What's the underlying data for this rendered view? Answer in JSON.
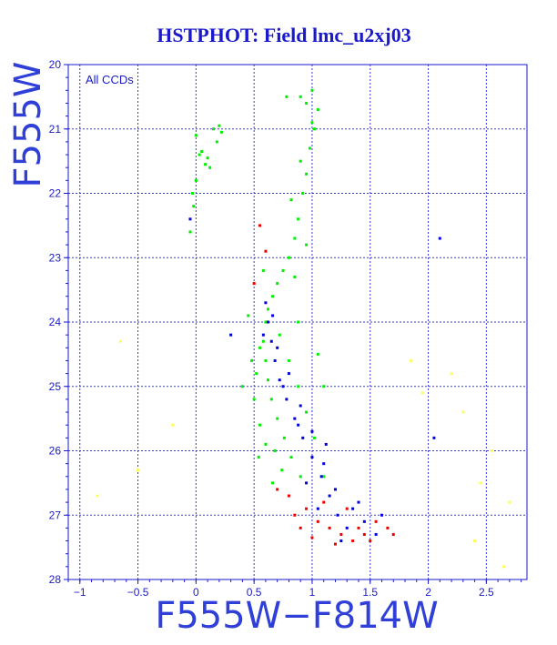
{
  "chart_data": {
    "type": "scatter",
    "title": "HSTPHOT: Field lmc_u2xj03",
    "xlabel": "F555W−F814W",
    "ylabel": "F555W",
    "annotation": "All CCDs",
    "xlim": [
      -1.1,
      2.85
    ],
    "ylim": [
      28,
      20
    ],
    "y_inverted": true,
    "x_ticks": [
      -1,
      -0.5,
      0,
      0.5,
      1,
      1.5,
      2,
      2.5
    ],
    "x_tick_labels": [
      "−1",
      "−0.5",
      "0",
      "0.5",
      "1",
      "1.5",
      "2",
      "2.5"
    ],
    "y_ticks": [
      20,
      21,
      22,
      23,
      24,
      25,
      26,
      27,
      28
    ],
    "y_tick_labels": [
      "20",
      "21",
      "22",
      "23",
      "24",
      "25",
      "26",
      "27",
      "28"
    ],
    "grid": true,
    "colors": {
      "title": "#1a1acc",
      "axis": "#1a1acc",
      "grid": "#3a3acc",
      "axis_label": "#2f3fd8"
    },
    "series": [
      {
        "color": "#00ee00",
        "points": [
          [
            0.0,
            21.1
          ],
          [
            0.05,
            21.35
          ],
          [
            0.1,
            21.45
          ],
          [
            0.15,
            21.0
          ],
          [
            0.2,
            20.95
          ],
          [
            0.0,
            21.8
          ],
          [
            -0.02,
            22.2
          ],
          [
            -0.05,
            22.6
          ],
          [
            0.08,
            21.55
          ],
          [
            0.12,
            21.6
          ],
          [
            0.03,
            21.4
          ],
          [
            0.18,
            21.2
          ],
          [
            -0.03,
            22.0
          ],
          [
            0.22,
            21.05
          ],
          [
            0.95,
            20.6
          ],
          [
            1.0,
            20.4
          ],
          [
            0.9,
            20.5
          ],
          [
            1.05,
            20.7
          ],
          [
            1.0,
            20.9
          ],
          [
            0.98,
            21.3
          ],
          [
            0.95,
            21.7
          ],
          [
            0.92,
            22.0
          ],
          [
            0.88,
            22.4
          ],
          [
            0.85,
            22.7
          ],
          [
            0.8,
            23.0
          ],
          [
            0.75,
            23.2
          ],
          [
            0.7,
            23.4
          ],
          [
            0.66,
            23.6
          ],
          [
            0.62,
            23.8
          ],
          [
            0.6,
            24.0
          ],
          [
            0.58,
            24.3
          ],
          [
            0.6,
            24.6
          ],
          [
            0.62,
            24.9
          ],
          [
            0.65,
            25.2
          ],
          [
            0.7,
            25.5
          ],
          [
            0.76,
            25.8
          ],
          [
            0.82,
            26.1
          ],
          [
            0.9,
            26.4
          ],
          [
            0.55,
            24.4
          ],
          [
            0.52,
            24.8
          ],
          [
            0.5,
            25.2
          ],
          [
            0.55,
            25.6
          ],
          [
            0.72,
            24.2
          ],
          [
            0.8,
            24.6
          ],
          [
            0.88,
            25.0
          ],
          [
            0.95,
            25.4
          ],
          [
            1.02,
            25.8
          ],
          [
            0.6,
            25.9
          ],
          [
            0.68,
            26.0
          ],
          [
            0.74,
            26.3
          ],
          [
            0.45,
            23.9
          ],
          [
            0.48,
            24.6
          ],
          [
            0.85,
            23.3
          ],
          [
            0.95,
            22.8
          ],
          [
            1.05,
            24.5
          ],
          [
            1.1,
            25.0
          ],
          [
            0.4,
            25.0
          ],
          [
            0.58,
            23.2
          ],
          [
            0.82,
            22.1
          ],
          [
            0.9,
            21.5
          ],
          [
            1.02,
            21.0
          ],
          [
            0.78,
            20.5
          ],
          [
            0.88,
            24.0
          ],
          [
            0.66,
            26.5
          ],
          [
            1.1,
            26.4
          ],
          [
            0.54,
            26.1
          ]
        ]
      },
      {
        "color": "#0000dd",
        "points": [
          [
            0.62,
            24.0
          ],
          [
            0.65,
            24.3
          ],
          [
            0.68,
            24.6
          ],
          [
            0.72,
            24.9
          ],
          [
            0.78,
            25.2
          ],
          [
            0.85,
            25.5
          ],
          [
            0.92,
            25.8
          ],
          [
            1.0,
            26.1
          ],
          [
            1.08,
            26.4
          ],
          [
            1.15,
            26.7
          ],
          [
            1.22,
            27.0
          ],
          [
            1.3,
            27.2
          ],
          [
            0.6,
            23.7
          ],
          [
            0.7,
            24.4
          ],
          [
            0.8,
            24.8
          ],
          [
            0.9,
            25.3
          ],
          [
            1.0,
            25.7
          ],
          [
            1.1,
            26.2
          ],
          [
            1.2,
            26.6
          ],
          [
            1.35,
            26.9
          ],
          [
            1.45,
            27.1
          ],
          [
            1.55,
            27.3
          ],
          [
            0.95,
            26.5
          ],
          [
            1.05,
            26.9
          ],
          [
            0.66,
            23.9
          ],
          [
            0.75,
            25.0
          ],
          [
            0.88,
            25.6
          ],
          [
            1.25,
            27.4
          ],
          [
            1.4,
            26.8
          ],
          [
            0.58,
            24.2
          ],
          [
            1.12,
            25.9
          ],
          [
            1.6,
            27.0
          ],
          [
            -0.05,
            22.4
          ],
          [
            0.3,
            24.2
          ],
          [
            2.1,
            22.7
          ],
          [
            2.05,
            25.8
          ]
        ]
      },
      {
        "color": "#ee0000",
        "points": [
          [
            0.95,
            26.9
          ],
          [
            1.05,
            27.1
          ],
          [
            1.15,
            27.2
          ],
          [
            1.25,
            27.3
          ],
          [
            1.35,
            27.4
          ],
          [
            1.45,
            27.3
          ],
          [
            1.55,
            27.1
          ],
          [
            1.65,
            27.2
          ],
          [
            0.85,
            27.0
          ],
          [
            1.0,
            27.35
          ],
          [
            1.2,
            27.45
          ],
          [
            1.4,
            27.2
          ],
          [
            1.1,
            26.8
          ],
          [
            0.8,
            26.7
          ],
          [
            1.3,
            26.9
          ],
          [
            0.7,
            26.6
          ],
          [
            1.5,
            27.4
          ],
          [
            0.9,
            27.2
          ],
          [
            0.55,
            22.5
          ],
          [
            0.6,
            22.9
          ],
          [
            0.5,
            23.4
          ],
          [
            1.7,
            27.3
          ]
        ]
      },
      {
        "color": "#ffff55",
        "points": [
          [
            -0.65,
            24.3
          ],
          [
            -0.85,
            26.7
          ],
          [
            -0.5,
            26.3
          ],
          [
            2.3,
            25.4
          ],
          [
            2.45,
            26.5
          ],
          [
            2.55,
            26.0
          ],
          [
            2.65,
            27.8
          ],
          [
            2.2,
            24.8
          ],
          [
            1.85,
            24.6
          ],
          [
            2.4,
            27.4
          ],
          [
            -0.2,
            25.6
          ],
          [
            2.7,
            26.8
          ],
          [
            1.95,
            25.1
          ]
        ]
      }
    ]
  }
}
